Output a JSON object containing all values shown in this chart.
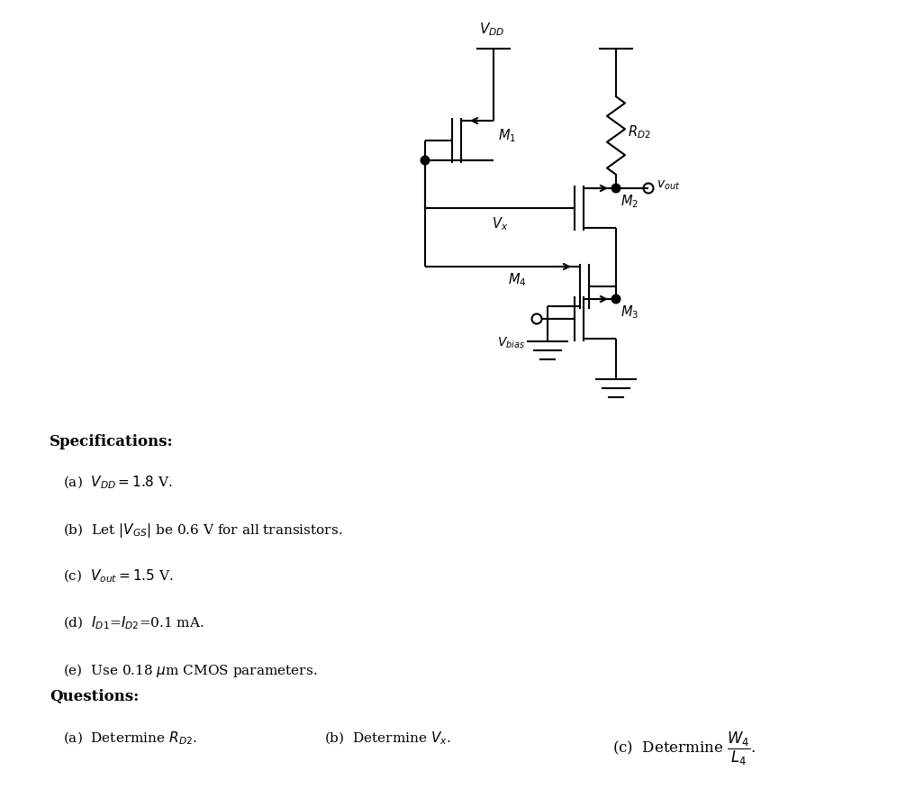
{
  "fig_width": 10.26,
  "fig_height": 8.87,
  "dpi": 100,
  "bg_color": "#ffffff",
  "spec_title": "Specifications",
  "spec_a": "(a)  $V_{DD} = 1.8$ V.",
  "spec_b": "(b)  Let $|V_{GS}|$ be 0.6 V for all transistors.",
  "spec_c": "(c)  $V_{out} = 1.5$ V.",
  "spec_d": "(d)  $I_{D1}$=$I_{D2}$=0.1 mA.",
  "spec_e": "(e)  Use 0.18 $\\mu$m CMOS parameters.",
  "q_title": "Questions",
  "q_a": "(a)  Determine $R_{D2}$.",
  "q_b": "(b)  Determine $V_x$.",
  "q_c": "(c)  Determine $\\dfrac{W_4}{L_4}$.",
  "lw": 1.5
}
